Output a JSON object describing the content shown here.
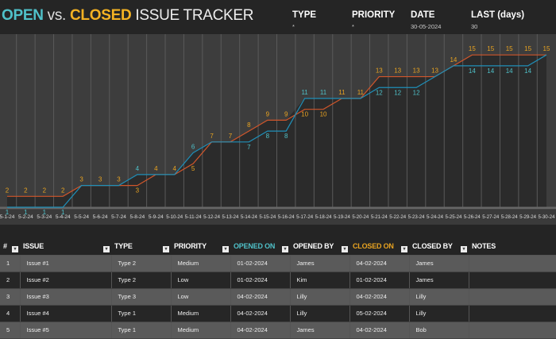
{
  "header": {
    "title_open": "OPEN",
    "title_vs": "vs.",
    "title_closed": "CLOSED",
    "title_rest": "ISSUE TRACKER",
    "filters": [
      {
        "label": "TYPE",
        "value": "*"
      },
      {
        "label": "PRIORITY",
        "value": "*"
      },
      {
        "label": "DATE",
        "value": "30-05-2024"
      },
      {
        "label": "LAST (days)",
        "value": "30"
      }
    ]
  },
  "colors": {
    "open": "#1f8fb8",
    "open_label": "#4fc1c9",
    "closed": "#d0562b",
    "closed_label": "#e8a321",
    "background": "#3d3d3d",
    "area": "#2b2b2b"
  },
  "chart_data": {
    "type": "line",
    "categories": [
      "5-1-24",
      "5-2-24",
      "5-3-24",
      "5-4-24",
      "5-5-24",
      "5-6-24",
      "5-7-24",
      "5-8-24",
      "5-9-24",
      "5-10-24",
      "5-11-24",
      "5-12-24",
      "5-13-24",
      "5-14-24",
      "5-15-24",
      "5-16-24",
      "5-17-24",
      "5-18-24",
      "5-19-24",
      "5-20-24",
      "5-21-24",
      "5-22-24",
      "5-23-24",
      "5-24-24",
      "5-25-24",
      "5-26-24",
      "5-27-24",
      "5-28-24",
      "5-29-24",
      "5-30-24"
    ],
    "series": [
      {
        "key": "closed",
        "values": [
          2,
          2,
          2,
          2,
          3,
          3,
          3,
          3,
          4,
          4,
          5,
          7,
          7,
          8,
          9,
          9,
          10,
          10,
          11,
          11,
          13,
          13,
          13,
          13,
          14,
          15,
          15,
          15,
          15,
          15
        ]
      },
      {
        "key": "open",
        "values": [
          1,
          1,
          1,
          1,
          3,
          3,
          3,
          4,
          4,
          4,
          6,
          7,
          7,
          7,
          8,
          8,
          11,
          11,
          11,
          11,
          12,
          12,
          12,
          13,
          14,
          14,
          14,
          14,
          14,
          15
        ]
      }
    ],
    "ylim": [
      1,
      16
    ],
    "grid": "vertical",
    "legend": "none"
  },
  "table": {
    "columns": [
      "#",
      "ISSUE",
      "TYPE",
      "PRIORITY",
      "OPENED ON",
      "OPENED BY",
      "CLOSED ON",
      "CLOSED BY",
      "NOTES"
    ],
    "rows": [
      [
        "1",
        "Issue #1",
        "Type 2",
        "Medium",
        "01-02-2024",
        "James",
        "04-02-2024",
        "James",
        ""
      ],
      [
        "2",
        "Issue #2",
        "Type 2",
        "Low",
        "01-02-2024",
        "Kim",
        "01-02-2024",
        "James",
        ""
      ],
      [
        "3",
        "Issue #3",
        "Type 3",
        "Low",
        "04-02-2024",
        "Lilly",
        "04-02-2024",
        "Lilly",
        ""
      ],
      [
        "4",
        "Issue #4",
        "Type 1",
        "Medium",
        "04-02-2024",
        "Lilly",
        "05-02-2024",
        "Lilly",
        ""
      ],
      [
        "5",
        "Issue #5",
        "Type 1",
        "Medium",
        "04-02-2024",
        "James",
        "04-02-2024",
        "Bob",
        ""
      ]
    ]
  }
}
